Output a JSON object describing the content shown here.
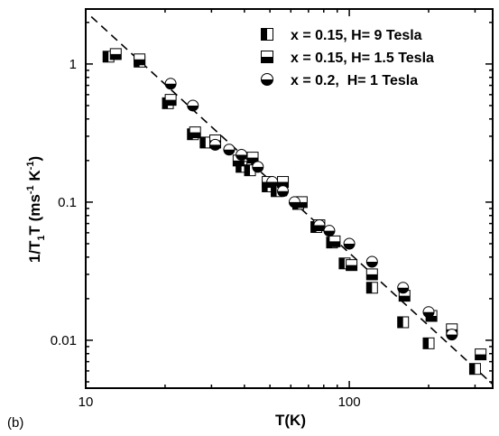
{
  "chart_data": {
    "type": "scatter",
    "panel_label": "(b)",
    "xlabel": "T(K)",
    "ylabel_main": "1/T",
    "ylabel_sub": "1",
    "ylabel_rest": "T (ms",
    "ylabel_exp1": "-1",
    "ylabel_mid": " K",
    "ylabel_exp2": "-1",
    "ylabel_close": ")",
    "xscale": "log",
    "yscale": "log",
    "xlim": [
      10,
      350
    ],
    "ylim": [
      0.0045,
      2.5
    ],
    "x_ticks": [
      {
        "value": 10,
        "label": "10"
      },
      {
        "value": 100,
        "label": "100"
      }
    ],
    "y_ticks": [
      {
        "value": 0.01,
        "label": "0.01"
      },
      {
        "value": 0.1,
        "label": "0.1"
      },
      {
        "value": 1,
        "label": "1"
      }
    ],
    "legend_position": "top-right",
    "grid": false,
    "series": [
      {
        "name": "x = 0.15, H= 9 Tesla",
        "marker": "square-left-filled",
        "points": [
          [
            12.2,
            1.13
          ],
          [
            16,
            1.04
          ],
          [
            20.5,
            0.52
          ],
          [
            25.5,
            0.31
          ],
          [
            28.5,
            0.27
          ],
          [
            31,
            0.27
          ],
          [
            39,
            0.18
          ],
          [
            42,
            0.17
          ],
          [
            49,
            0.13
          ],
          [
            53,
            0.12
          ],
          [
            64,
            0.097
          ],
          [
            75,
            0.066
          ],
          [
            86,
            0.051
          ],
          [
            96,
            0.036
          ],
          [
            122,
            0.024
          ],
          [
            160,
            0.0135
          ],
          [
            200,
            0.0095
          ],
          [
            300,
            0.0062
          ]
        ]
      },
      {
        "name": "x = 0.15, H= 1.5 Tesla",
        "marker": "square-bottom-filled",
        "points": [
          [
            13,
            1.18
          ],
          [
            16,
            1.08
          ],
          [
            21,
            0.55
          ],
          [
            26,
            0.32
          ],
          [
            31,
            0.28
          ],
          [
            38,
            0.2
          ],
          [
            43,
            0.21
          ],
          [
            49,
            0.14
          ],
          [
            56,
            0.14
          ],
          [
            66,
            0.1
          ],
          [
            77,
            0.068
          ],
          [
            88,
            0.052
          ],
          [
            102,
            0.035
          ],
          [
            122,
            0.03
          ],
          [
            162,
            0.021
          ],
          [
            205,
            0.015
          ],
          [
            245,
            0.012
          ],
          [
            315,
            0.0079
          ]
        ]
      },
      {
        "name": "x = 0.2,  H= 1 Tesla",
        "marker": "circle-bottom-filled",
        "points": [
          [
            21,
            0.72
          ],
          [
            25.5,
            0.5
          ],
          [
            31,
            0.26
          ],
          [
            35,
            0.24
          ],
          [
            39,
            0.22
          ],
          [
            45,
            0.18
          ],
          [
            51,
            0.14
          ],
          [
            56,
            0.12
          ],
          [
            62,
            0.1
          ],
          [
            77,
            0.068
          ],
          [
            84,
            0.062
          ],
          [
            100,
            0.05
          ],
          [
            122,
            0.037
          ],
          [
            160,
            0.024
          ],
          [
            200,
            0.016
          ],
          [
            245,
            0.011
          ]
        ]
      }
    ],
    "fit_line": {
      "style": "dashed",
      "from": [
        10.5,
        2.2
      ],
      "to": [
        350,
        0.0048
      ]
    }
  }
}
